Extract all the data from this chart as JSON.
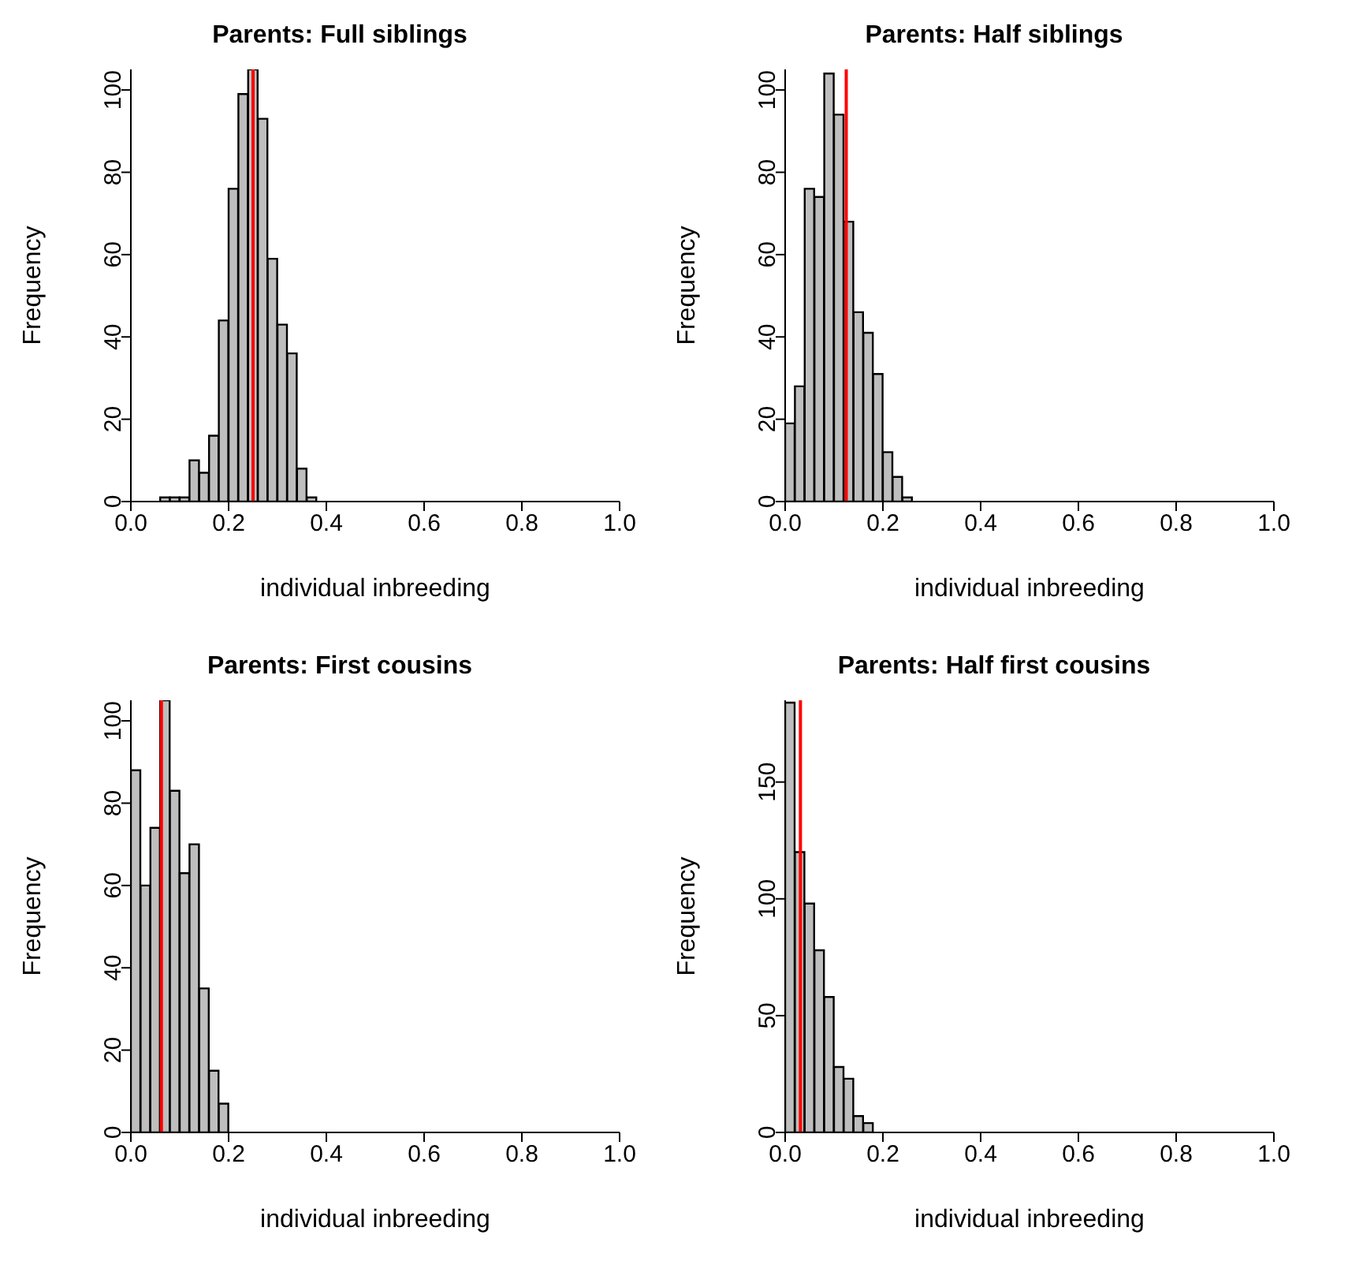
{
  "chart_data": [
    {
      "type": "histogram",
      "title": "Parents: Full siblings",
      "xlabel": "individual inbreeding",
      "ylabel": "Frequency",
      "color": "#bebebe",
      "bins": [
        0.06,
        0.08,
        0.1,
        0.12,
        0.14,
        0.16,
        0.18,
        0.2,
        0.22,
        0.24,
        0.26,
        0.28,
        0.3,
        0.32,
        0.34,
        0.36,
        0.38
      ],
      "values": [
        1,
        1,
        1,
        10,
        7,
        16,
        44,
        76,
        99,
        105,
        93,
        59,
        43,
        36,
        8,
        1
      ],
      "xlim": [
        0,
        1
      ],
      "xticks": [
        {
          "value": 0,
          "label": "0.0"
        },
        {
          "value": 0.2,
          "label": "0.2"
        },
        {
          "value": 0.4,
          "label": "0.4"
        },
        {
          "value": 0.6,
          "label": "0.6"
        },
        {
          "value": 0.8,
          "label": "0.8"
        },
        {
          "value": 1,
          "label": "1.0"
        }
      ],
      "ylim": [
        0,
        105
      ],
      "yticks": [
        0,
        20,
        40,
        60,
        80,
        100
      ],
      "ref_lines": [
        {
          "axis": "x",
          "value": 0.25,
          "color": "#ff0000"
        }
      ]
    },
    {
      "type": "histogram",
      "title": "Parents: Half siblings",
      "xlabel": "individual inbreeding",
      "ylabel": "Frequency",
      "color": "#bebebe",
      "bins": [
        0,
        0.02,
        0.04,
        0.06,
        0.08,
        0.1,
        0.12,
        0.14,
        0.16,
        0.18,
        0.2,
        0.22,
        0.24,
        0.26
      ],
      "values": [
        19,
        28,
        76,
        74,
        104,
        94,
        68,
        46,
        41,
        31,
        12,
        6,
        1
      ],
      "xlim": [
        0,
        1
      ],
      "xticks": [
        {
          "value": 0,
          "label": "0.0"
        },
        {
          "value": 0.2,
          "label": "0.2"
        },
        {
          "value": 0.4,
          "label": "0.4"
        },
        {
          "value": 0.6,
          "label": "0.6"
        },
        {
          "value": 0.8,
          "label": "0.8"
        },
        {
          "value": 1,
          "label": "1.0"
        }
      ],
      "ylim": [
        0,
        105
      ],
      "yticks": [
        0,
        20,
        40,
        60,
        80,
        100
      ],
      "ref_lines": [
        {
          "axis": "x",
          "value": 0.125,
          "color": "#ff0000"
        }
      ]
    },
    {
      "type": "histogram",
      "title": "Parents: First cousins",
      "xlabel": "individual inbreeding",
      "ylabel": "Frequency",
      "color": "#bebebe",
      "bins": [
        0,
        0.02,
        0.04,
        0.06,
        0.08,
        0.1,
        0.12,
        0.14,
        0.16,
        0.18,
        0.2
      ],
      "values": [
        88,
        60,
        74,
        105,
        83,
        63,
        70,
        35,
        15,
        7
      ],
      "xlim": [
        0,
        1
      ],
      "xticks": [
        {
          "value": 0,
          "label": "0.0"
        },
        {
          "value": 0.2,
          "label": "0.2"
        },
        {
          "value": 0.4,
          "label": "0.4"
        },
        {
          "value": 0.6,
          "label": "0.6"
        },
        {
          "value": 0.8,
          "label": "0.8"
        },
        {
          "value": 1,
          "label": "1.0"
        }
      ],
      "ylim": [
        0,
        105
      ],
      "yticks": [
        0,
        20,
        40,
        60,
        80,
        100
      ],
      "ref_lines": [
        {
          "axis": "x",
          "value": 0.0625,
          "color": "#ff0000"
        }
      ]
    },
    {
      "type": "histogram",
      "title": "Parents: Half first cousins",
      "xlabel": "individual inbreeding",
      "ylabel": "Frequency",
      "color": "#bebebe",
      "bins": [
        0,
        0.02,
        0.04,
        0.06,
        0.08,
        0.1,
        0.12,
        0.14,
        0.16,
        0.18
      ],
      "values": [
        184,
        120,
        98,
        78,
        58,
        28,
        23,
        7,
        4
      ],
      "xlim": [
        0,
        1
      ],
      "xticks": [
        {
          "value": 0,
          "label": "0.0"
        },
        {
          "value": 0.2,
          "label": "0.2"
        },
        {
          "value": 0.4,
          "label": "0.4"
        },
        {
          "value": 0.6,
          "label": "0.6"
        },
        {
          "value": 0.8,
          "label": "0.8"
        },
        {
          "value": 1,
          "label": "1.0"
        }
      ],
      "ylim": [
        0,
        185
      ],
      "yticks": [
        0,
        50,
        100,
        150
      ],
      "ref_lines": [
        {
          "axis": "x",
          "value": 0.03125,
          "color": "#ff0000"
        }
      ]
    }
  ]
}
